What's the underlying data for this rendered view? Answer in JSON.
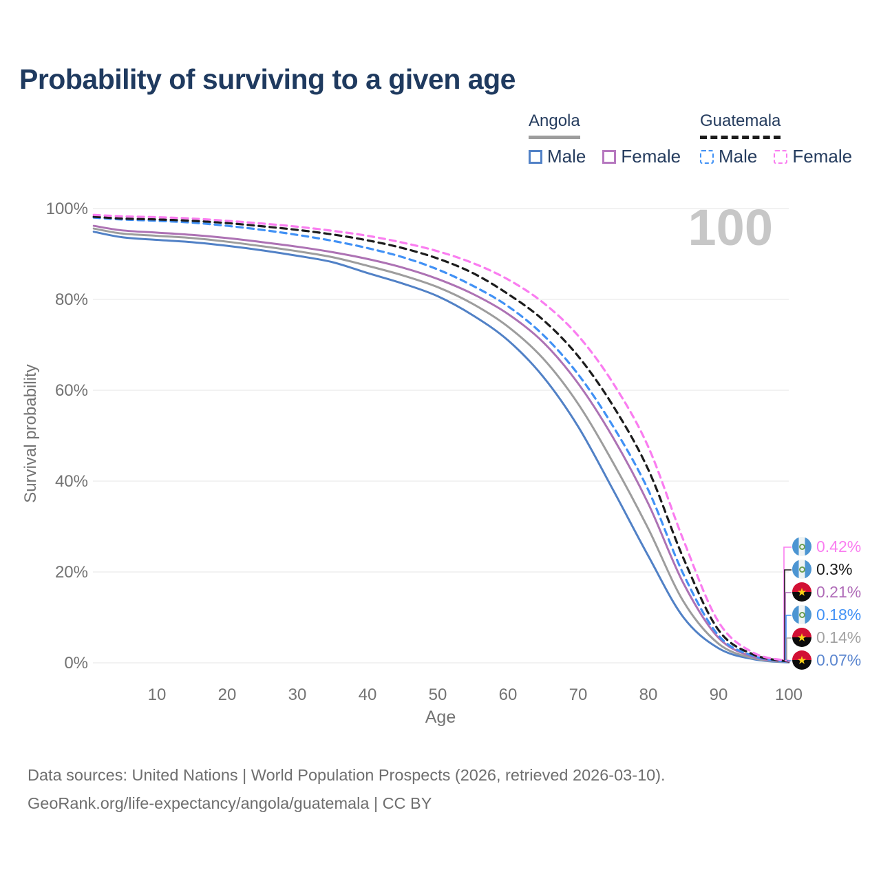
{
  "title": "Probability of surviving to a given age",
  "watermark_age": "100",
  "legend": {
    "groups": [
      {
        "label": "Angola",
        "line_style": "solid",
        "underline_color": "#9d9d9d",
        "items": [
          {
            "label": "Male",
            "color": "#5181c6"
          },
          {
            "label": "Female",
            "color": "#b678bf"
          }
        ]
      },
      {
        "label": "Guatemala",
        "line_style": "dashed",
        "underline_color": "#1c1c1c",
        "items": [
          {
            "label": "Male",
            "color": "#4191f5"
          },
          {
            "label": "Female",
            "color": "#fa7df0"
          }
        ]
      }
    ]
  },
  "chart_data": {
    "type": "line",
    "title": "Probability of surviving to a given age",
    "xlabel": "Age",
    "ylabel": "Survival probability",
    "xlim": [
      0,
      100
    ],
    "ylim": [
      0,
      100
    ],
    "grid": "horizontal",
    "yticks": [
      0,
      20,
      40,
      60,
      80,
      100
    ],
    "ytick_labels": [
      "0%",
      "20%",
      "40%",
      "60%",
      "80%",
      "100%"
    ],
    "xticks": [
      10,
      20,
      30,
      40,
      50,
      60,
      70,
      80,
      90,
      100
    ],
    "ages": [
      1,
      5,
      10,
      15,
      20,
      25,
      30,
      35,
      40,
      45,
      50,
      55,
      60,
      65,
      70,
      75,
      80,
      85,
      90,
      95,
      100
    ],
    "series": [
      {
        "name": "Angola Male",
        "country": "Angola",
        "sex": "Male",
        "color": "#5181c6",
        "dashed": false,
        "values": [
          94.9,
          93.7,
          93.1,
          92.6,
          91.8,
          90.8,
          89.6,
          88.2,
          85.8,
          83.5,
          80.7,
          76.5,
          71.0,
          63.0,
          52.0,
          38.0,
          23.5,
          10.0,
          3.2,
          0.8,
          0.07
        ]
      },
      {
        "name": "Angola Female",
        "country": "Angola",
        "sex": "Female",
        "color": "#ad72b4",
        "dashed": false,
        "values": [
          96.2,
          95.2,
          94.7,
          94.2,
          93.5,
          92.6,
          91.6,
          90.4,
          88.9,
          87.0,
          84.5,
          81.2,
          76.8,
          70.6,
          61.5,
          49.5,
          35.0,
          17.5,
          5.5,
          1.3,
          0.21
        ]
      },
      {
        "name": "Angola (both sexes)",
        "country": "Angola",
        "sex": "Both",
        "color": "#9d9d9d",
        "dashed": false,
        "values": [
          95.6,
          94.5,
          94.0,
          93.5,
          92.7,
          91.7,
          90.6,
          89.3,
          87.4,
          85.3,
          82.7,
          79.0,
          74.0,
          67.0,
          57.0,
          44.0,
          29.5,
          13.5,
          4.2,
          1.0,
          0.14
        ]
      },
      {
        "name": "Guatemala Male",
        "country": "Guatemala",
        "sex": "Male",
        "color": "#4191f5",
        "dashed": true,
        "values": [
          98.0,
          97.6,
          97.3,
          96.9,
          96.2,
          95.3,
          94.2,
          92.9,
          91.3,
          89.3,
          86.6,
          83.0,
          78.5,
          72.2,
          63.5,
          52.0,
          38.0,
          19.5,
          6.0,
          1.5,
          0.18
        ]
      },
      {
        "name": "Guatemala (both sexes)",
        "country": "Guatemala",
        "sex": "Both",
        "color": "#1c1c1c",
        "dashed": true,
        "values": [
          98.2,
          97.8,
          97.6,
          97.3,
          96.8,
          96.1,
          95.3,
          94.3,
          93.0,
          91.3,
          89.0,
          85.8,
          81.2,
          75.5,
          67.5,
          56.5,
          42.5,
          23.0,
          7.2,
          1.8,
          0.3
        ]
      },
      {
        "name": "Guatemala Female",
        "country": "Guatemala",
        "sex": "Female",
        "color": "#fa7df0",
        "dashed": true,
        "values": [
          98.6,
          98.3,
          98.1,
          97.8,
          97.3,
          96.7,
          96.0,
          95.1,
          94.0,
          92.5,
          90.6,
          88.0,
          84.4,
          79.3,
          72.0,
          61.5,
          47.5,
          27.0,
          9.0,
          2.2,
          0.42
        ]
      }
    ],
    "end_labels": [
      {
        "flag": "guatemala",
        "value": "0.42%",
        "color": "#fa7df0",
        "series": "Guatemala Female"
      },
      {
        "flag": "guatemala",
        "value": "0.3%",
        "color": "#1c1c1c",
        "series": "Guatemala (both sexes)"
      },
      {
        "flag": "angola",
        "value": "0.21%",
        "color": "#b06cb8",
        "series": "Angola Female"
      },
      {
        "flag": "guatemala",
        "value": "0.18%",
        "color": "#4191f5",
        "series": "Guatemala Male"
      },
      {
        "flag": "angola",
        "value": "0.14%",
        "color": "#a3a3a3",
        "series": "Angola (both sexes)"
      },
      {
        "flag": "angola",
        "value": "0.07%",
        "color": "#5b86cf",
        "series": "Angola Male"
      }
    ],
    "legend_position": "top-right",
    "hover_age": "100"
  },
  "footer": {
    "line1": "Data sources: United Nations | World Population Prospects (2026, retrieved 2026-03-10).",
    "line2": "GeoRank.org/life-expectancy/angola/guatemala | CC BY"
  }
}
